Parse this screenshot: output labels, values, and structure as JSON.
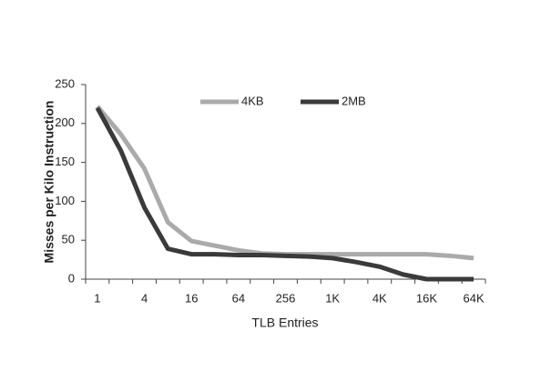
{
  "chart_data": {
    "type": "line",
    "x_label": "TLB Entries",
    "y_label": "Misses per Kilo Instruction",
    "categories": [
      "1",
      null,
      "4",
      null,
      "16",
      null,
      "64",
      null,
      "256",
      null,
      "1K",
      null,
      "4K",
      null,
      "16K",
      null,
      "64K"
    ],
    "series": [
      {
        "name": "4KB",
        "color": "#aaaaaa",
        "values": [
          222,
          186,
          142,
          73,
          49,
          43,
          37,
          33,
          32,
          32,
          32,
          32,
          32,
          32,
          32,
          30,
          27
        ]
      },
      {
        "name": "2MB",
        "color": "#3a3a3a",
        "values": [
          220,
          165,
          92,
          39,
          32,
          32,
          31,
          31,
          30,
          29,
          27,
          22,
          16,
          6,
          0,
          0,
          0
        ]
      }
    ],
    "ylim": [
      0,
      250
    ],
    "yticks": [
      0,
      50,
      100,
      150,
      200,
      250
    ],
    "legend": "top",
    "grid": false
  }
}
